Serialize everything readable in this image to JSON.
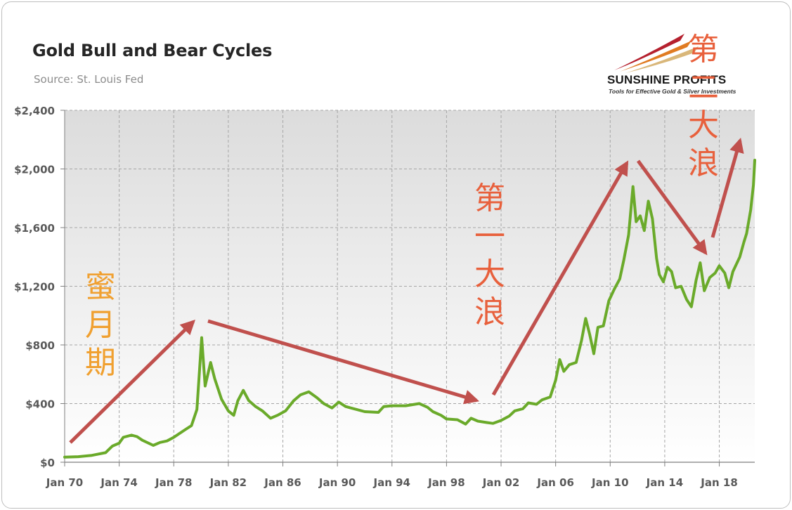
{
  "chart_data": {
    "type": "line",
    "title": "Gold Bull and Bear Cycles",
    "subtitle": "Source: St. Louis Fed",
    "xlabel": "",
    "ylabel": "",
    "x_ticks": [
      "Jan 70",
      "Jan 74",
      "Jan 78",
      "Jan 82",
      "Jan 86",
      "Jan 90",
      "Jan 94",
      "Jan 98",
      "Jan 02",
      "Jan 06",
      "Jan 10",
      "Jan 14",
      "Jan 18"
    ],
    "y_ticks": [
      "$0",
      "$400",
      "$800",
      "$1,200",
      "$1,600",
      "$2,000",
      "$2,400"
    ],
    "ylim": [
      0,
      2400
    ],
    "xlim": [
      1970.0,
      2020.6
    ],
    "grid": true,
    "line_color": "#6aaa2a",
    "series": [
      {
        "name": "",
        "points": [
          [
            1970.0,
            35
          ],
          [
            1971.0,
            38
          ],
          [
            1972.0,
            47
          ],
          [
            1973.0,
            65
          ],
          [
            1973.5,
            110
          ],
          [
            1974.0,
            130
          ],
          [
            1974.3,
            170
          ],
          [
            1974.9,
            185
          ],
          [
            1975.3,
            175
          ],
          [
            1975.7,
            150
          ],
          [
            1976.5,
            115
          ],
          [
            1977.0,
            135
          ],
          [
            1977.5,
            145
          ],
          [
            1978.0,
            170
          ],
          [
            1978.8,
            220
          ],
          [
            1979.3,
            250
          ],
          [
            1979.7,
            360
          ],
          [
            1980.05,
            850
          ],
          [
            1980.3,
            520
          ],
          [
            1980.7,
            680
          ],
          [
            1981.0,
            570
          ],
          [
            1981.5,
            430
          ],
          [
            1982.0,
            350
          ],
          [
            1982.4,
            320
          ],
          [
            1982.7,
            420
          ],
          [
            1983.1,
            490
          ],
          [
            1983.5,
            420
          ],
          [
            1984.0,
            380
          ],
          [
            1984.5,
            350
          ],
          [
            1985.1,
            300
          ],
          [
            1985.6,
            320
          ],
          [
            1986.2,
            350
          ],
          [
            1986.8,
            420
          ],
          [
            1987.3,
            460
          ],
          [
            1987.9,
            480
          ],
          [
            1988.5,
            440
          ],
          [
            1989.0,
            400
          ],
          [
            1989.6,
            370
          ],
          [
            1990.1,
            410
          ],
          [
            1990.6,
            380
          ],
          [
            1991.0,
            370
          ],
          [
            1992.0,
            345
          ],
          [
            1993.0,
            340
          ],
          [
            1993.4,
            380
          ],
          [
            1994.0,
            385
          ],
          [
            1995.0,
            385
          ],
          [
            1996.0,
            400
          ],
          [
            1996.6,
            375
          ],
          [
            1997.0,
            345
          ],
          [
            1997.6,
            320
          ],
          [
            1998.0,
            295
          ],
          [
            1998.8,
            290
          ],
          [
            1999.4,
            260
          ],
          [
            1999.8,
            300
          ],
          [
            2000.3,
            280
          ],
          [
            2001.0,
            270
          ],
          [
            2001.4,
            265
          ],
          [
            2002.0,
            285
          ],
          [
            2002.6,
            315
          ],
          [
            2003.0,
            350
          ],
          [
            2003.6,
            365
          ],
          [
            2004.0,
            405
          ],
          [
            2004.6,
            395
          ],
          [
            2005.0,
            425
          ],
          [
            2005.6,
            445
          ],
          [
            2006.0,
            560
          ],
          [
            2006.3,
            700
          ],
          [
            2006.6,
            620
          ],
          [
            2007.0,
            665
          ],
          [
            2007.5,
            680
          ],
          [
            2007.9,
            830
          ],
          [
            2008.2,
            980
          ],
          [
            2008.5,
            870
          ],
          [
            2008.8,
            740
          ],
          [
            2009.1,
            920
          ],
          [
            2009.5,
            930
          ],
          [
            2009.9,
            1100
          ],
          [
            2010.3,
            1180
          ],
          [
            2010.7,
            1250
          ],
          [
            2011.0,
            1380
          ],
          [
            2011.35,
            1550
          ],
          [
            2011.67,
            1880
          ],
          [
            2011.9,
            1640
          ],
          [
            2012.2,
            1680
          ],
          [
            2012.5,
            1580
          ],
          [
            2012.8,
            1780
          ],
          [
            2013.1,
            1660
          ],
          [
            2013.4,
            1390
          ],
          [
            2013.6,
            1280
          ],
          [
            2013.9,
            1230
          ],
          [
            2014.2,
            1330
          ],
          [
            2014.5,
            1300
          ],
          [
            2014.8,
            1190
          ],
          [
            2015.2,
            1200
          ],
          [
            2015.6,
            1110
          ],
          [
            2015.95,
            1060
          ],
          [
            2016.3,
            1240
          ],
          [
            2016.6,
            1360
          ],
          [
            2016.9,
            1170
          ],
          [
            2017.3,
            1260
          ],
          [
            2017.7,
            1290
          ],
          [
            2018.0,
            1340
          ],
          [
            2018.4,
            1290
          ],
          [
            2018.7,
            1190
          ],
          [
            2019.0,
            1300
          ],
          [
            2019.5,
            1400
          ],
          [
            2019.8,
            1500
          ],
          [
            2020.0,
            1560
          ],
          [
            2020.3,
            1720
          ],
          [
            2020.5,
            1890
          ],
          [
            2020.6,
            2060
          ]
        ]
      }
    ],
    "annotations": [
      {
        "text": "蜜月期",
        "color": "#f0a030"
      },
      {
        "text": "第一大浪",
        "color": "#e8603c"
      },
      {
        "text": "第二大浪",
        "color": "#e8603c"
      }
    ],
    "arrow_color": "#c0504d"
  },
  "logo": {
    "name": "SUNSHINE PROFITS",
    "tagline": "Tools for Effective Gold & Silver Investments"
  }
}
